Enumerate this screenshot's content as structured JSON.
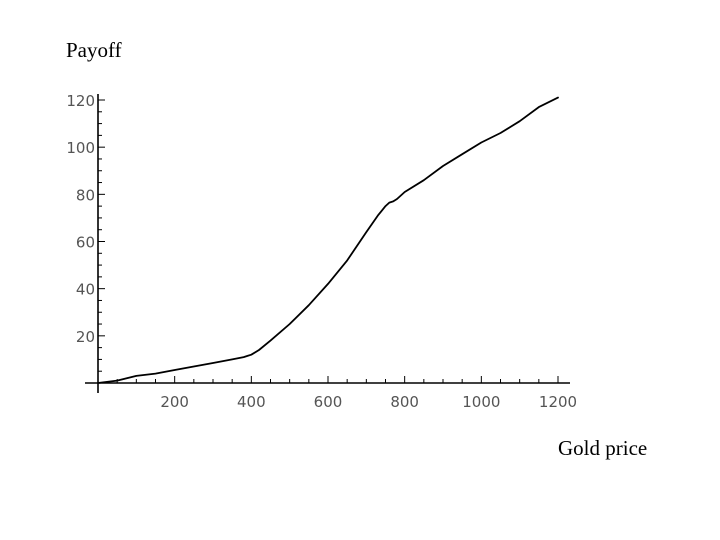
{
  "chart_data": {
    "type": "line",
    "title": "",
    "xlabel": "Gold price",
    "ylabel": "Payoff",
    "xlim": [
      0,
      1200
    ],
    "ylim": [
      0,
      120
    ],
    "x_ticks": [
      200,
      400,
      600,
      800,
      1000,
      1200
    ],
    "y_ticks": [
      20,
      40,
      60,
      80,
      100,
      120
    ],
    "grid": false,
    "legend": "none",
    "series": [
      {
        "x": [
          0,
          50,
          100,
          150,
          200,
          250,
          300,
          350,
          380,
          390,
          400,
          420,
          450,
          500,
          550,
          600,
          650,
          700,
          730,
          750,
          760,
          770,
          780,
          800,
          850,
          900,
          950,
          1000,
          1050,
          1100,
          1150,
          1200
        ],
        "y": [
          0,
          1,
          3,
          4,
          5.5,
          7,
          8.5,
          10,
          11,
          11.5,
          12,
          14,
          18,
          25,
          33,
          42,
          52,
          64,
          71,
          75,
          76.5,
          77,
          78,
          81,
          86,
          92,
          97,
          102,
          106,
          111,
          117,
          121
        ],
        "color": "#000000"
      }
    ]
  }
}
